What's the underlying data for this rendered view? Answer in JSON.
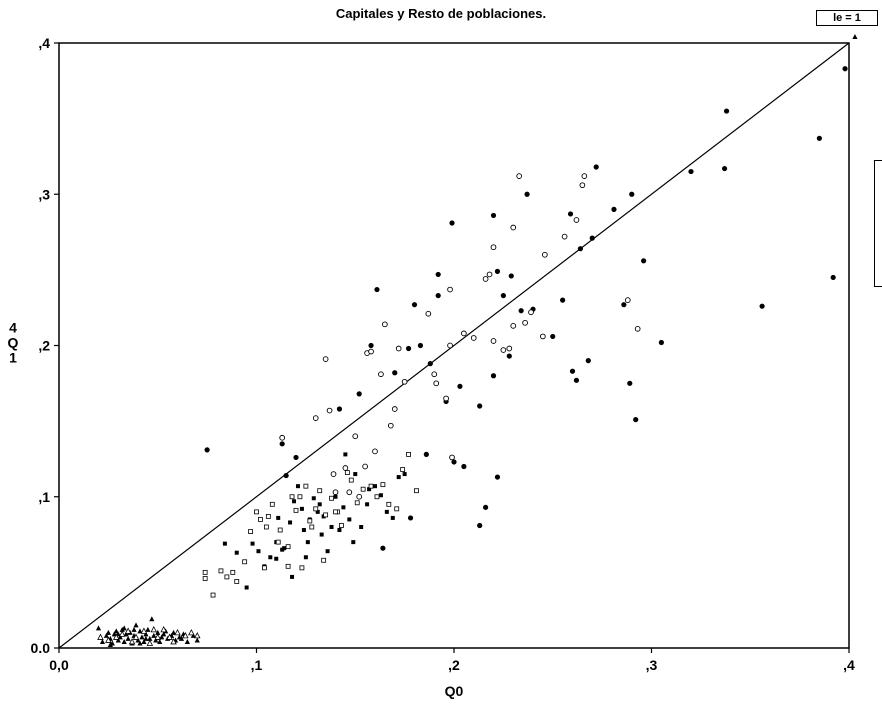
{
  "chart_data": {
    "type": "scatter",
    "title": "Capitales y Resto de poblaciones.",
    "panel_label": "le = 1",
    "xlabel": "Q0",
    "ylabel_lines": [
      "4",
      "Q",
      "1"
    ],
    "xlim": [
      0,
      0.4
    ],
    "ylim": [
      0,
      0.4
    ],
    "xticks": [
      {
        "v": 0.0,
        "label": "0,0"
      },
      {
        "v": 0.1,
        "label": ",1"
      },
      {
        "v": 0.2,
        "label": ",2"
      },
      {
        "v": 0.3,
        "label": ",3"
      },
      {
        "v": 0.4,
        "label": ",4"
      }
    ],
    "yticks": [
      {
        "v": 0.0,
        "label": "0.0"
      },
      {
        "v": 0.1,
        "label": ",1"
      },
      {
        "v": 0.2,
        "label": ",2"
      },
      {
        "v": 0.3,
        "label": ",3"
      },
      {
        "v": 0.4,
        "label": ",4"
      }
    ],
    "reference_line": {
      "x": [
        0,
        0.4
      ],
      "y": [
        0,
        0.4
      ]
    },
    "grid": false,
    "series": [
      {
        "marker": "filled-circle",
        "points": [
          [
            0.075,
            0.131
          ],
          [
            0.113,
            0.135
          ],
          [
            0.161,
            0.237
          ],
          [
            0.18,
            0.227
          ],
          [
            0.192,
            0.247
          ],
          [
            0.199,
            0.281
          ],
          [
            0.22,
            0.286
          ],
          [
            0.222,
            0.249
          ],
          [
            0.237,
            0.3
          ],
          [
            0.259,
            0.287
          ],
          [
            0.272,
            0.318
          ],
          [
            0.29,
            0.3
          ],
          [
            0.281,
            0.29
          ],
          [
            0.264,
            0.264
          ],
          [
            0.27,
            0.271
          ],
          [
            0.32,
            0.315
          ],
          [
            0.338,
            0.355
          ],
          [
            0.337,
            0.317
          ],
          [
            0.385,
            0.337
          ],
          [
            0.398,
            0.383
          ],
          [
            0.392,
            0.245
          ],
          [
            0.356,
            0.226
          ],
          [
            0.305,
            0.202
          ],
          [
            0.296,
            0.256
          ],
          [
            0.286,
            0.227
          ],
          [
            0.292,
            0.151
          ],
          [
            0.289,
            0.175
          ],
          [
            0.268,
            0.19
          ],
          [
            0.26,
            0.183
          ],
          [
            0.262,
            0.177
          ],
          [
            0.255,
            0.23
          ],
          [
            0.25,
            0.206
          ],
          [
            0.24,
            0.224
          ],
          [
            0.234,
            0.223
          ],
          [
            0.229,
            0.246
          ],
          [
            0.228,
            0.193
          ],
          [
            0.225,
            0.233
          ],
          [
            0.22,
            0.18
          ],
          [
            0.213,
            0.16
          ],
          [
            0.203,
            0.173
          ],
          [
            0.196,
            0.163
          ],
          [
            0.188,
            0.188
          ],
          [
            0.183,
            0.2
          ],
          [
            0.177,
            0.198
          ],
          [
            0.17,
            0.182
          ],
          [
            0.158,
            0.2
          ],
          [
            0.152,
            0.168
          ],
          [
            0.142,
            0.158
          ],
          [
            0.12,
            0.126
          ],
          [
            0.2,
            0.123
          ],
          [
            0.205,
            0.12
          ],
          [
            0.222,
            0.113
          ],
          [
            0.213,
            0.081
          ],
          [
            0.216,
            0.093
          ],
          [
            0.164,
            0.066
          ],
          [
            0.178,
            0.086
          ],
          [
            0.186,
            0.128
          ],
          [
            0.192,
            0.233
          ],
          [
            0.115,
            0.114
          ]
        ]
      },
      {
        "marker": "open-circle",
        "points": [
          [
            0.113,
            0.139
          ],
          [
            0.13,
            0.152
          ],
          [
            0.137,
            0.157
          ],
          [
            0.135,
            0.191
          ],
          [
            0.156,
            0.195
          ],
          [
            0.158,
            0.196
          ],
          [
            0.165,
            0.214
          ],
          [
            0.172,
            0.198
          ],
          [
            0.187,
            0.221
          ],
          [
            0.198,
            0.237
          ],
          [
            0.205,
            0.208
          ],
          [
            0.218,
            0.247
          ],
          [
            0.22,
            0.265
          ],
          [
            0.23,
            0.278
          ],
          [
            0.233,
            0.312
          ],
          [
            0.265,
            0.306
          ],
          [
            0.266,
            0.312
          ],
          [
            0.262,
            0.283
          ],
          [
            0.256,
            0.272
          ],
          [
            0.246,
            0.26
          ],
          [
            0.245,
            0.206
          ],
          [
            0.239,
            0.222
          ],
          [
            0.236,
            0.215
          ],
          [
            0.23,
            0.213
          ],
          [
            0.228,
            0.198
          ],
          [
            0.225,
            0.197
          ],
          [
            0.22,
            0.203
          ],
          [
            0.216,
            0.244
          ],
          [
            0.21,
            0.205
          ],
          [
            0.198,
            0.2
          ],
          [
            0.196,
            0.165
          ],
          [
            0.19,
            0.181
          ],
          [
            0.191,
            0.175
          ],
          [
            0.175,
            0.176
          ],
          [
            0.17,
            0.158
          ],
          [
            0.163,
            0.181
          ],
          [
            0.168,
            0.147
          ],
          [
            0.16,
            0.13
          ],
          [
            0.155,
            0.12
          ],
          [
            0.15,
            0.14
          ],
          [
            0.145,
            0.119
          ],
          [
            0.139,
            0.115
          ],
          [
            0.199,
            0.126
          ],
          [
            0.288,
            0.23
          ],
          [
            0.293,
            0.211
          ],
          [
            0.14,
            0.103
          ],
          [
            0.147,
            0.103
          ],
          [
            0.152,
            0.1
          ]
        ]
      },
      {
        "marker": "filled-square",
        "points": [
          [
            0.084,
            0.069
          ],
          [
            0.09,
            0.063
          ],
          [
            0.095,
            0.04
          ],
          [
            0.098,
            0.069
          ],
          [
            0.101,
            0.064
          ],
          [
            0.104,
            0.054
          ],
          [
            0.107,
            0.06
          ],
          [
            0.11,
            0.07
          ],
          [
            0.111,
            0.086
          ],
          [
            0.114,
            0.066
          ],
          [
            0.117,
            0.083
          ],
          [
            0.119,
            0.097
          ],
          [
            0.121,
            0.107
          ],
          [
            0.123,
            0.092
          ],
          [
            0.124,
            0.078
          ],
          [
            0.126,
            0.07
          ],
          [
            0.127,
            0.085
          ],
          [
            0.129,
            0.099
          ],
          [
            0.131,
            0.09
          ],
          [
            0.133,
            0.075
          ],
          [
            0.134,
            0.087
          ],
          [
            0.136,
            0.064
          ],
          [
            0.138,
            0.08
          ],
          [
            0.14,
            0.1
          ],
          [
            0.142,
            0.078
          ],
          [
            0.144,
            0.093
          ],
          [
            0.147,
            0.085
          ],
          [
            0.149,
            0.07
          ],
          [
            0.153,
            0.08
          ],
          [
            0.156,
            0.095
          ],
          [
            0.16,
            0.107
          ],
          [
            0.163,
            0.101
          ],
          [
            0.166,
            0.09
          ],
          [
            0.169,
            0.086
          ],
          [
            0.172,
            0.113
          ],
          [
            0.175,
            0.115
          ],
          [
            0.11,
            0.059
          ],
          [
            0.113,
            0.065
          ],
          [
            0.118,
            0.047
          ],
          [
            0.125,
            0.06
          ],
          [
            0.132,
            0.095
          ],
          [
            0.145,
            0.128
          ],
          [
            0.15,
            0.115
          ],
          [
            0.157,
            0.105
          ]
        ]
      },
      {
        "marker": "open-square",
        "points": [
          [
            0.074,
            0.05
          ],
          [
            0.074,
            0.046
          ],
          [
            0.078,
            0.035
          ],
          [
            0.082,
            0.051
          ],
          [
            0.085,
            0.047
          ],
          [
            0.09,
            0.044
          ],
          [
            0.094,
            0.057
          ],
          [
            0.097,
            0.077
          ],
          [
            0.1,
            0.09
          ],
          [
            0.102,
            0.085
          ],
          [
            0.105,
            0.08
          ],
          [
            0.106,
            0.087
          ],
          [
            0.108,
            0.095
          ],
          [
            0.111,
            0.07
          ],
          [
            0.112,
            0.078
          ],
          [
            0.116,
            0.067
          ],
          [
            0.118,
            0.1
          ],
          [
            0.12,
            0.091
          ],
          [
            0.122,
            0.1
          ],
          [
            0.125,
            0.107
          ],
          [
            0.127,
            0.084
          ],
          [
            0.128,
            0.08
          ],
          [
            0.13,
            0.092
          ],
          [
            0.132,
            0.104
          ],
          [
            0.135,
            0.088
          ],
          [
            0.138,
            0.099
          ],
          [
            0.141,
            0.09
          ],
          [
            0.143,
            0.081
          ],
          [
            0.146,
            0.116
          ],
          [
            0.148,
            0.111
          ],
          [
            0.151,
            0.096
          ],
          [
            0.154,
            0.105
          ],
          [
            0.158,
            0.107
          ],
          [
            0.161,
            0.1
          ],
          [
            0.164,
            0.108
          ],
          [
            0.167,
            0.095
          ],
          [
            0.171,
            0.092
          ],
          [
            0.174,
            0.118
          ],
          [
            0.177,
            0.128
          ],
          [
            0.181,
            0.104
          ],
          [
            0.116,
            0.054
          ],
          [
            0.123,
            0.053
          ],
          [
            0.104,
            0.053
          ],
          [
            0.088,
            0.05
          ],
          [
            0.134,
            0.058
          ],
          [
            0.14,
            0.09
          ]
        ]
      },
      {
        "marker": "filled-triangle",
        "points": [
          [
            0.02,
            0.013
          ],
          [
            0.022,
            0.004
          ],
          [
            0.024,
            0.008
          ],
          [
            0.025,
            0.01
          ],
          [
            0.026,
            0.006
          ],
          [
            0.027,
            0.003
          ],
          [
            0.028,
            0.009
          ],
          [
            0.029,
            0.011
          ],
          [
            0.03,
            0.005
          ],
          [
            0.031,
            0.007
          ],
          [
            0.032,
            0.012
          ],
          [
            0.033,
            0.004
          ],
          [
            0.034,
            0.009
          ],
          [
            0.035,
            0.006
          ],
          [
            0.036,
            0.01
          ],
          [
            0.037,
            0.003
          ],
          [
            0.038,
            0.008
          ],
          [
            0.039,
            0.015
          ],
          [
            0.04,
            0.005
          ],
          [
            0.041,
            0.011
          ],
          [
            0.042,
            0.007
          ],
          [
            0.043,
            0.004
          ],
          [
            0.044,
            0.009
          ],
          [
            0.045,
            0.012
          ],
          [
            0.046,
            0.006
          ],
          [
            0.047,
            0.019
          ],
          [
            0.048,
            0.008
          ],
          [
            0.049,
            0.005
          ],
          [
            0.05,
            0.01
          ],
          [
            0.051,
            0.004
          ],
          [
            0.052,
            0.007
          ],
          [
            0.053,
            0.009
          ],
          [
            0.055,
            0.006
          ],
          [
            0.057,
            0.008
          ],
          [
            0.059,
            0.005
          ],
          [
            0.061,
            0.007
          ],
          [
            0.063,
            0.009
          ],
          [
            0.065,
            0.004
          ],
          [
            0.068,
            0.008
          ],
          [
            0.07,
            0.005
          ],
          [
            0.026,
            0.002
          ],
          [
            0.033,
            0.013
          ],
          [
            0.041,
            0.003
          ],
          [
            0.054,
            0.011
          ],
          [
            0.058,
            0.01
          ],
          [
            0.062,
            0.006
          ],
          [
            0.038,
            0.012
          ],
          [
            0.03,
            0.009
          ],
          [
            0.044,
            0.006
          ],
          [
            0.403,
            0.404
          ]
        ]
      },
      {
        "marker": "open-triangle",
        "points": [
          [
            0.021,
            0.007
          ],
          [
            0.025,
            0.005
          ],
          [
            0.029,
            0.007
          ],
          [
            0.032,
            0.009
          ],
          [
            0.035,
            0.011
          ],
          [
            0.039,
            0.007
          ],
          [
            0.043,
            0.011
          ],
          [
            0.046,
            0.003
          ],
          [
            0.05,
            0.007
          ],
          [
            0.053,
            0.012
          ],
          [
            0.056,
            0.007
          ],
          [
            0.06,
            0.01
          ],
          [
            0.064,
            0.008
          ],
          [
            0.067,
            0.01
          ],
          [
            0.07,
            0.008
          ],
          [
            0.037,
            0.004
          ],
          [
            0.048,
            0.012
          ],
          [
            0.058,
            0.004
          ]
        ]
      }
    ]
  }
}
